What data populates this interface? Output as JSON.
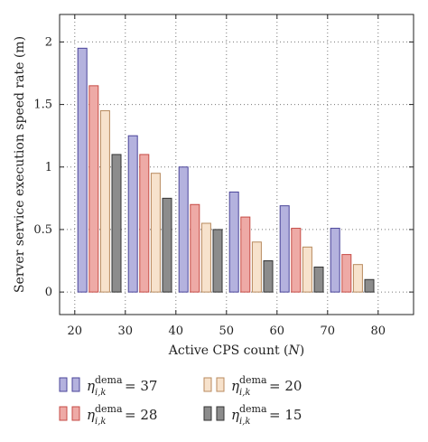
{
  "chart_data": {
    "type": "bar",
    "title": "",
    "xlabel_prefix": "Active CPS count (",
    "xlabel_var": "N",
    "xlabel_suffix": ")",
    "ylabel": "Server service execution speed rate (m)",
    "categories": [
      20,
      30,
      40,
      50,
      60,
      70,
      80
    ],
    "xlim": [
      17,
      87
    ],
    "ylim": [
      -0.18,
      2.22
    ],
    "xticks": [
      "20",
      "30",
      "40",
      "50",
      "60",
      "70",
      "80"
    ],
    "yticks": [
      "0",
      "0.5",
      "1",
      "1.5",
      "2"
    ],
    "ytick_values": [
      0,
      0.5,
      1,
      1.5,
      2
    ],
    "xtick_values": [
      20,
      30,
      40,
      50,
      60,
      70,
      80
    ],
    "grid": true,
    "grid_style": "dotted",
    "legend_position": "bottom",
    "series": [
      {
        "legend_symbol": "η",
        "legend_sup": "dema",
        "legend_sub": "i,k",
        "legend_value": "= 37",
        "fill": "#b4b2de",
        "stroke": "#4a449a",
        "x": [
          21.5,
          31.5,
          41.5,
          51.5,
          61.5,
          71.5
        ],
        "values": [
          1.95,
          1.25,
          1.0,
          0.8,
          0.69,
          0.51
        ]
      },
      {
        "legend_symbol": "η",
        "legend_sup": "dema",
        "legend_sub": "i,k",
        "legend_value": "= 28",
        "fill": "#eeaaa6",
        "stroke": "#c64b45",
        "x": [
          23.75,
          33.75,
          43.75,
          53.75,
          63.75,
          73.75
        ],
        "values": [
          1.65,
          1.1,
          0.7,
          0.6,
          0.51,
          0.3
        ]
      },
      {
        "legend_symbol": "η",
        "legend_sup": "dema",
        "legend_sub": "i,k",
        "legend_value": "= 20",
        "fill": "#f7e2cc",
        "stroke": "#b88a5e",
        "x": [
          26.0,
          36.0,
          46.0,
          56.0,
          66.0,
          76.0
        ],
        "values": [
          1.45,
          0.95,
          0.55,
          0.4,
          0.36,
          0.22
        ]
      },
      {
        "legend_symbol": "η",
        "legend_sup": "dema",
        "legend_sub": "i,k",
        "legend_value": "= 15",
        "fill": "#8c8c8c",
        "stroke": "#333333",
        "x": [
          28.25,
          38.25,
          48.25,
          58.25,
          68.25,
          78.25
        ],
        "values": [
          1.1,
          0.75,
          0.5,
          0.25,
          0.2,
          0.1
        ]
      }
    ]
  }
}
